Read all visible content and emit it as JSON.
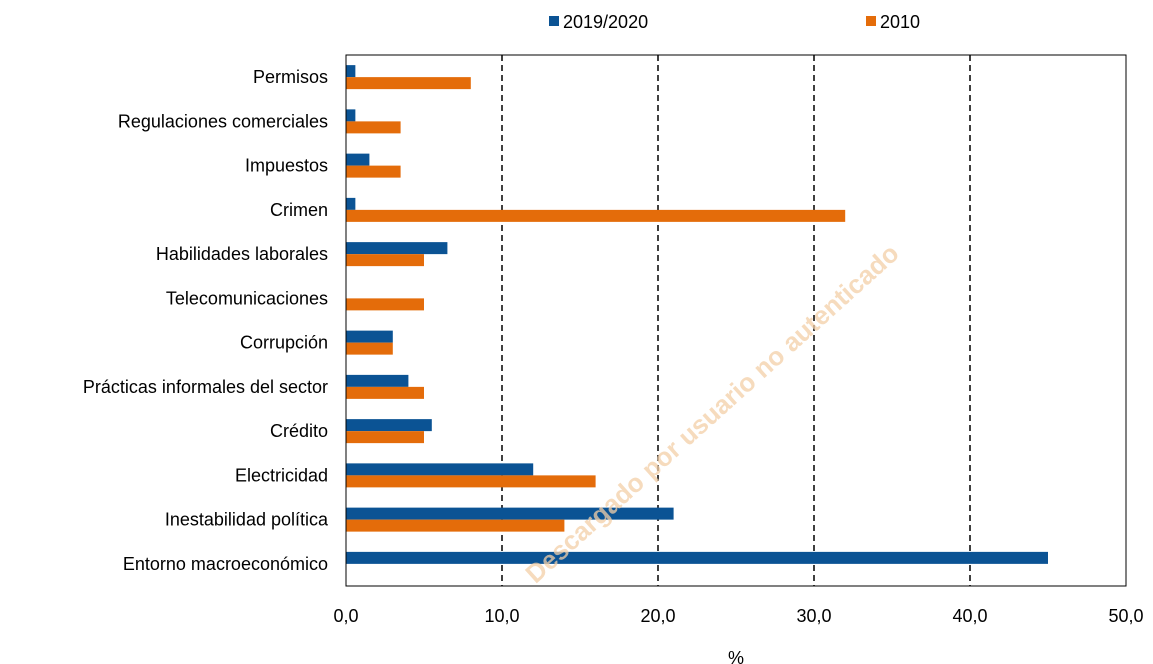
{
  "chart_data": {
    "type": "bar",
    "orientation": "horizontal",
    "categories": [
      "Permisos",
      "Regulaciones comerciales",
      "Impuestos",
      "Crimen",
      "Habilidades laborales",
      "Telecomunicaciones",
      "Corrupción",
      "Prácticas informales del sector",
      "Crédito",
      "Electricidad",
      "Inestabilidad política",
      "Entorno macroeconómico"
    ],
    "series": [
      {
        "name": "2019/2020",
        "color": "#0b5394",
        "values": [
          0.6,
          0.6,
          1.5,
          0.6,
          6.5,
          0,
          3.0,
          4.0,
          5.5,
          12.0,
          21.0,
          45.0
        ]
      },
      {
        "name": "2010",
        "color": "#e46c0a",
        "values": [
          8.0,
          3.5,
          3.5,
          32.0,
          5.0,
          5.0,
          3.0,
          5.0,
          5.0,
          16.0,
          14.0,
          0
        ]
      }
    ],
    "xlim": [
      0,
      50
    ],
    "xticks": [
      "0,0",
      "10,0",
      "20,0",
      "30,0",
      "40,0",
      "50,0"
    ],
    "xlabel": "%",
    "ylabel": "",
    "grid": "vertical dashed",
    "legend_position": "top"
  },
  "watermark": "Descargado por usuario no autenticado"
}
